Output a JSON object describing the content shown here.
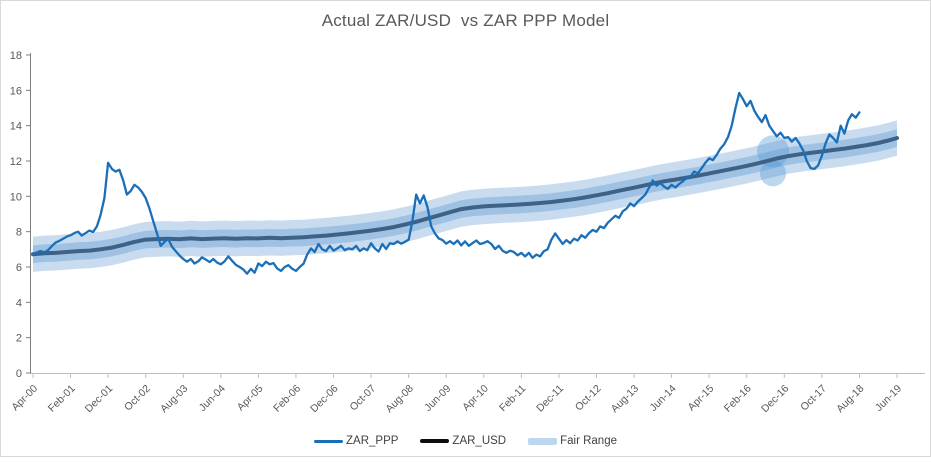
{
  "colors": {
    "text": "#595959",
    "y_axis_line": "#7F7F7F",
    "x_axis_line": "#BFBFBF",
    "border": "#D9D9D9",
    "background": "#FFFFFF"
  },
  "chart_data": {
    "type": "line",
    "title": "Actual ZAR/USD  vs ZAR PPP Model",
    "y_axis": {
      "min": 0,
      "max": 18,
      "step": 2,
      "ticks": [
        0,
        2,
        4,
        6,
        8,
        10,
        12,
        14,
        16,
        18
      ]
    },
    "x_axis": {
      "months_per_tick": 10,
      "total_months": 230,
      "tick_labels": [
        "Apr-00",
        "Feb-01",
        "Dec-01",
        "Oct-02",
        "Aug-03",
        "Jun-04",
        "Apr-05",
        "Feb-06",
        "Dec-06",
        "Oct-07",
        "Aug-08",
        "Jun-09",
        "Apr-10",
        "Feb-11",
        "Dec-11",
        "Oct-12",
        "Aug-13",
        "Jun-14",
        "Apr-15",
        "Feb-16",
        "Dec-16",
        "Oct-17",
        "Aug-18",
        "Jun-19"
      ]
    },
    "legend": [
      {
        "label": "ZAR_PPP",
        "swatch_color": "#1B6FB8",
        "swatch_height": 3
      },
      {
        "label": "ZAR_USD",
        "swatch_color": "#0D0D0D",
        "swatch_height": 4
      },
      {
        "label": "Fair Range",
        "swatch_color": "#BDD7EE",
        "swatch_height": 7
      }
    ],
    "fair_range": {
      "label": "Fair Range",
      "basis": "ZAR_USD",
      "outer_offset": 1.0,
      "inner_offset": 0.5,
      "outer_color": "#C9DCEF",
      "inner_color": "#9FC2E4"
    },
    "highlight": {
      "month": 197,
      "color": "#5B9BD5",
      "opacity": 0.4,
      "circles": [
        {
          "value": 12.55,
          "radius": 16
        },
        {
          "value": 11.3,
          "radius": 13
        }
      ]
    },
    "series": [
      {
        "name": "ZAR_PPP",
        "color": "#1B6FB8",
        "width": 2.3,
        "points": [
          [
            0,
            6.75
          ],
          [
            1,
            6.82
          ],
          [
            2,
            6.9
          ],
          [
            3,
            6.84
          ],
          [
            4,
            6.95
          ],
          [
            5,
            7.18
          ],
          [
            6,
            7.38
          ],
          [
            7,
            7.48
          ],
          [
            8,
            7.6
          ],
          [
            9,
            7.72
          ],
          [
            10,
            7.8
          ],
          [
            11,
            7.92
          ],
          [
            12,
            8.0
          ],
          [
            13,
            7.78
          ],
          [
            14,
            7.92
          ],
          [
            15,
            8.06
          ],
          [
            16,
            7.98
          ],
          [
            17,
            8.3
          ],
          [
            18,
            8.95
          ],
          [
            19,
            9.9
          ],
          [
            20,
            11.9
          ],
          [
            21,
            11.55
          ],
          [
            22,
            11.4
          ],
          [
            23,
            11.5
          ],
          [
            24,
            10.9
          ],
          [
            25,
            10.1
          ],
          [
            26,
            10.3
          ],
          [
            27,
            10.65
          ],
          [
            28,
            10.5
          ],
          [
            29,
            10.25
          ],
          [
            30,
            9.9
          ],
          [
            31,
            9.3
          ],
          [
            32,
            8.6
          ],
          [
            33,
            7.9
          ],
          [
            34,
            7.2
          ],
          [
            35,
            7.42
          ],
          [
            36,
            7.6
          ],
          [
            37,
            7.15
          ],
          [
            38,
            6.9
          ],
          [
            39,
            6.65
          ],
          [
            40,
            6.45
          ],
          [
            41,
            6.3
          ],
          [
            42,
            6.45
          ],
          [
            43,
            6.2
          ],
          [
            44,
            6.32
          ],
          [
            45,
            6.55
          ],
          [
            46,
            6.42
          ],
          [
            47,
            6.28
          ],
          [
            48,
            6.45
          ],
          [
            49,
            6.25
          ],
          [
            50,
            6.15
          ],
          [
            51,
            6.32
          ],
          [
            52,
            6.6
          ],
          [
            53,
            6.35
          ],
          [
            54,
            6.12
          ],
          [
            55,
            6.0
          ],
          [
            56,
            5.85
          ],
          [
            57,
            5.62
          ],
          [
            58,
            5.9
          ],
          [
            59,
            5.68
          ],
          [
            60,
            6.2
          ],
          [
            61,
            6.05
          ],
          [
            62,
            6.3
          ],
          [
            63,
            6.15
          ],
          [
            64,
            6.22
          ],
          [
            65,
            5.92
          ],
          [
            66,
            5.78
          ],
          [
            67,
            6.0
          ],
          [
            68,
            6.1
          ],
          [
            69,
            5.9
          ],
          [
            70,
            5.78
          ],
          [
            71,
            6.0
          ],
          [
            72,
            6.18
          ],
          [
            73,
            6.7
          ],
          [
            74,
            7.05
          ],
          [
            75,
            6.85
          ],
          [
            76,
            7.3
          ],
          [
            77,
            7.0
          ],
          [
            78,
            6.9
          ],
          [
            79,
            7.2
          ],
          [
            80,
            6.92
          ],
          [
            81,
            7.05
          ],
          [
            82,
            7.2
          ],
          [
            83,
            6.95
          ],
          [
            84,
            7.05
          ],
          [
            85,
            7.0
          ],
          [
            86,
            7.2
          ],
          [
            87,
            6.9
          ],
          [
            88,
            7.05
          ],
          [
            89,
            6.95
          ],
          [
            90,
            7.35
          ],
          [
            91,
            7.05
          ],
          [
            92,
            6.88
          ],
          [
            93,
            7.3
          ],
          [
            94,
            7.02
          ],
          [
            95,
            7.35
          ],
          [
            96,
            7.3
          ],
          [
            97,
            7.45
          ],
          [
            98,
            7.32
          ],
          [
            99,
            7.42
          ],
          [
            100,
            7.55
          ],
          [
            101,
            8.6
          ],
          [
            102,
            10.1
          ],
          [
            103,
            9.6
          ],
          [
            104,
            10.05
          ],
          [
            105,
            9.4
          ],
          [
            106,
            8.3
          ],
          [
            107,
            7.9
          ],
          [
            108,
            7.62
          ],
          [
            109,
            7.52
          ],
          [
            110,
            7.32
          ],
          [
            111,
            7.46
          ],
          [
            112,
            7.3
          ],
          [
            113,
            7.5
          ],
          [
            114,
            7.22
          ],
          [
            115,
            7.45
          ],
          [
            116,
            7.2
          ],
          [
            117,
            7.35
          ],
          [
            118,
            7.5
          ],
          [
            119,
            7.3
          ],
          [
            120,
            7.36
          ],
          [
            121,
            7.46
          ],
          [
            122,
            7.3
          ],
          [
            123,
            7.02
          ],
          [
            124,
            7.2
          ],
          [
            125,
            6.92
          ],
          [
            126,
            6.8
          ],
          [
            127,
            6.92
          ],
          [
            128,
            6.85
          ],
          [
            129,
            6.66
          ],
          [
            130,
            6.8
          ],
          [
            131,
            6.6
          ],
          [
            132,
            6.8
          ],
          [
            133,
            6.52
          ],
          [
            134,
            6.7
          ],
          [
            135,
            6.6
          ],
          [
            136,
            6.9
          ],
          [
            137,
            7.0
          ],
          [
            138,
            7.55
          ],
          [
            139,
            7.9
          ],
          [
            140,
            7.6
          ],
          [
            141,
            7.3
          ],
          [
            142,
            7.52
          ],
          [
            143,
            7.35
          ],
          [
            144,
            7.6
          ],
          [
            145,
            7.5
          ],
          [
            146,
            7.8
          ],
          [
            147,
            7.65
          ],
          [
            148,
            7.92
          ],
          [
            149,
            8.1
          ],
          [
            150,
            8.0
          ],
          [
            151,
            8.3
          ],
          [
            152,
            8.2
          ],
          [
            153,
            8.5
          ],
          [
            154,
            8.7
          ],
          [
            155,
            8.9
          ],
          [
            156,
            8.78
          ],
          [
            157,
            9.15
          ],
          [
            158,
            9.3
          ],
          [
            159,
            9.6
          ],
          [
            160,
            9.45
          ],
          [
            161,
            9.7
          ],
          [
            162,
            9.9
          ],
          [
            163,
            10.1
          ],
          [
            164,
            10.5
          ],
          [
            165,
            10.9
          ],
          [
            166,
            10.6
          ],
          [
            167,
            10.75
          ],
          [
            168,
            10.55
          ],
          [
            169,
            10.42
          ],
          [
            170,
            10.65
          ],
          [
            171,
            10.5
          ],
          [
            172,
            10.7
          ],
          [
            173,
            10.85
          ],
          [
            174,
            11.05
          ],
          [
            175,
            11.1
          ],
          [
            176,
            11.4
          ],
          [
            177,
            11.3
          ],
          [
            178,
            11.6
          ],
          [
            179,
            11.9
          ],
          [
            180,
            12.15
          ],
          [
            181,
            12.05
          ],
          [
            182,
            12.35
          ],
          [
            183,
            12.7
          ],
          [
            184,
            12.95
          ],
          [
            185,
            13.35
          ],
          [
            186,
            14.0
          ],
          [
            187,
            15.0
          ],
          [
            188,
            15.85
          ],
          [
            189,
            15.5
          ],
          [
            190,
            15.1
          ],
          [
            191,
            15.4
          ],
          [
            192,
            14.85
          ],
          [
            193,
            14.5
          ],
          [
            194,
            14.2
          ],
          [
            195,
            14.6
          ],
          [
            196,
            14.0
          ],
          [
            197,
            13.7
          ],
          [
            198,
            13.4
          ],
          [
            199,
            13.6
          ],
          [
            200,
            13.3
          ],
          [
            201,
            13.35
          ],
          [
            202,
            13.1
          ],
          [
            203,
            13.3
          ],
          [
            204,
            13.0
          ],
          [
            205,
            12.6
          ],
          [
            206,
            12.0
          ],
          [
            207,
            11.6
          ],
          [
            208,
            11.55
          ],
          [
            209,
            11.75
          ],
          [
            210,
            12.3
          ],
          [
            211,
            13.0
          ],
          [
            212,
            13.5
          ],
          [
            213,
            13.3
          ],
          [
            214,
            13.05
          ],
          [
            215,
            14.0
          ],
          [
            216,
            13.55
          ],
          [
            217,
            14.3
          ],
          [
            218,
            14.65
          ],
          [
            219,
            14.45
          ],
          [
            220,
            14.75
          ]
        ]
      },
      {
        "name": "ZAR_USD",
        "color": "#3D6286",
        "width": 4,
        "points": [
          [
            0,
            6.72
          ],
          [
            3,
            6.78
          ],
          [
            6,
            6.8
          ],
          [
            9,
            6.85
          ],
          [
            12,
            6.9
          ],
          [
            15,
            6.93
          ],
          [
            18,
            7.0
          ],
          [
            21,
            7.1
          ],
          [
            24,
            7.25
          ],
          [
            27,
            7.42
          ],
          [
            30,
            7.55
          ],
          [
            33,
            7.58
          ],
          [
            36,
            7.6
          ],
          [
            39,
            7.57
          ],
          [
            42,
            7.62
          ],
          [
            45,
            7.58
          ],
          [
            48,
            7.61
          ],
          [
            51,
            7.63
          ],
          [
            54,
            7.6
          ],
          [
            57,
            7.63
          ],
          [
            60,
            7.62
          ],
          [
            63,
            7.65
          ],
          [
            66,
            7.63
          ],
          [
            69,
            7.66
          ],
          [
            72,
            7.68
          ],
          [
            75,
            7.73
          ],
          [
            78,
            7.78
          ],
          [
            81,
            7.84
          ],
          [
            84,
            7.9
          ],
          [
            87,
            7.98
          ],
          [
            90,
            8.06
          ],
          [
            93,
            8.15
          ],
          [
            96,
            8.26
          ],
          [
            99,
            8.4
          ],
          [
            102,
            8.56
          ],
          [
            105,
            8.74
          ],
          [
            108,
            8.92
          ],
          [
            111,
            9.1
          ],
          [
            114,
            9.28
          ],
          [
            117,
            9.37
          ],
          [
            120,
            9.43
          ],
          [
            123,
            9.47
          ],
          [
            126,
            9.5
          ],
          [
            129,
            9.53
          ],
          [
            132,
            9.57
          ],
          [
            135,
            9.62
          ],
          [
            138,
            9.68
          ],
          [
            141,
            9.76
          ],
          [
            144,
            9.84
          ],
          [
            147,
            9.94
          ],
          [
            150,
            10.06
          ],
          [
            153,
            10.18
          ],
          [
            156,
            10.32
          ],
          [
            159,
            10.45
          ],
          [
            162,
            10.58
          ],
          [
            165,
            10.72
          ],
          [
            168,
            10.85
          ],
          [
            171,
            10.95
          ],
          [
            174,
            11.06
          ],
          [
            177,
            11.17
          ],
          [
            180,
            11.3
          ],
          [
            183,
            11.42
          ],
          [
            186,
            11.55
          ],
          [
            189,
            11.68
          ],
          [
            192,
            11.82
          ],
          [
            195,
            11.98
          ],
          [
            198,
            12.14
          ],
          [
            201,
            12.28
          ],
          [
            204,
            12.38
          ],
          [
            207,
            12.46
          ],
          [
            210,
            12.54
          ],
          [
            213,
            12.62
          ],
          [
            216,
            12.7
          ],
          [
            219,
            12.8
          ],
          [
            222,
            12.9
          ],
          [
            225,
            13.02
          ],
          [
            228,
            13.18
          ],
          [
            230,
            13.3
          ]
        ]
      }
    ]
  }
}
